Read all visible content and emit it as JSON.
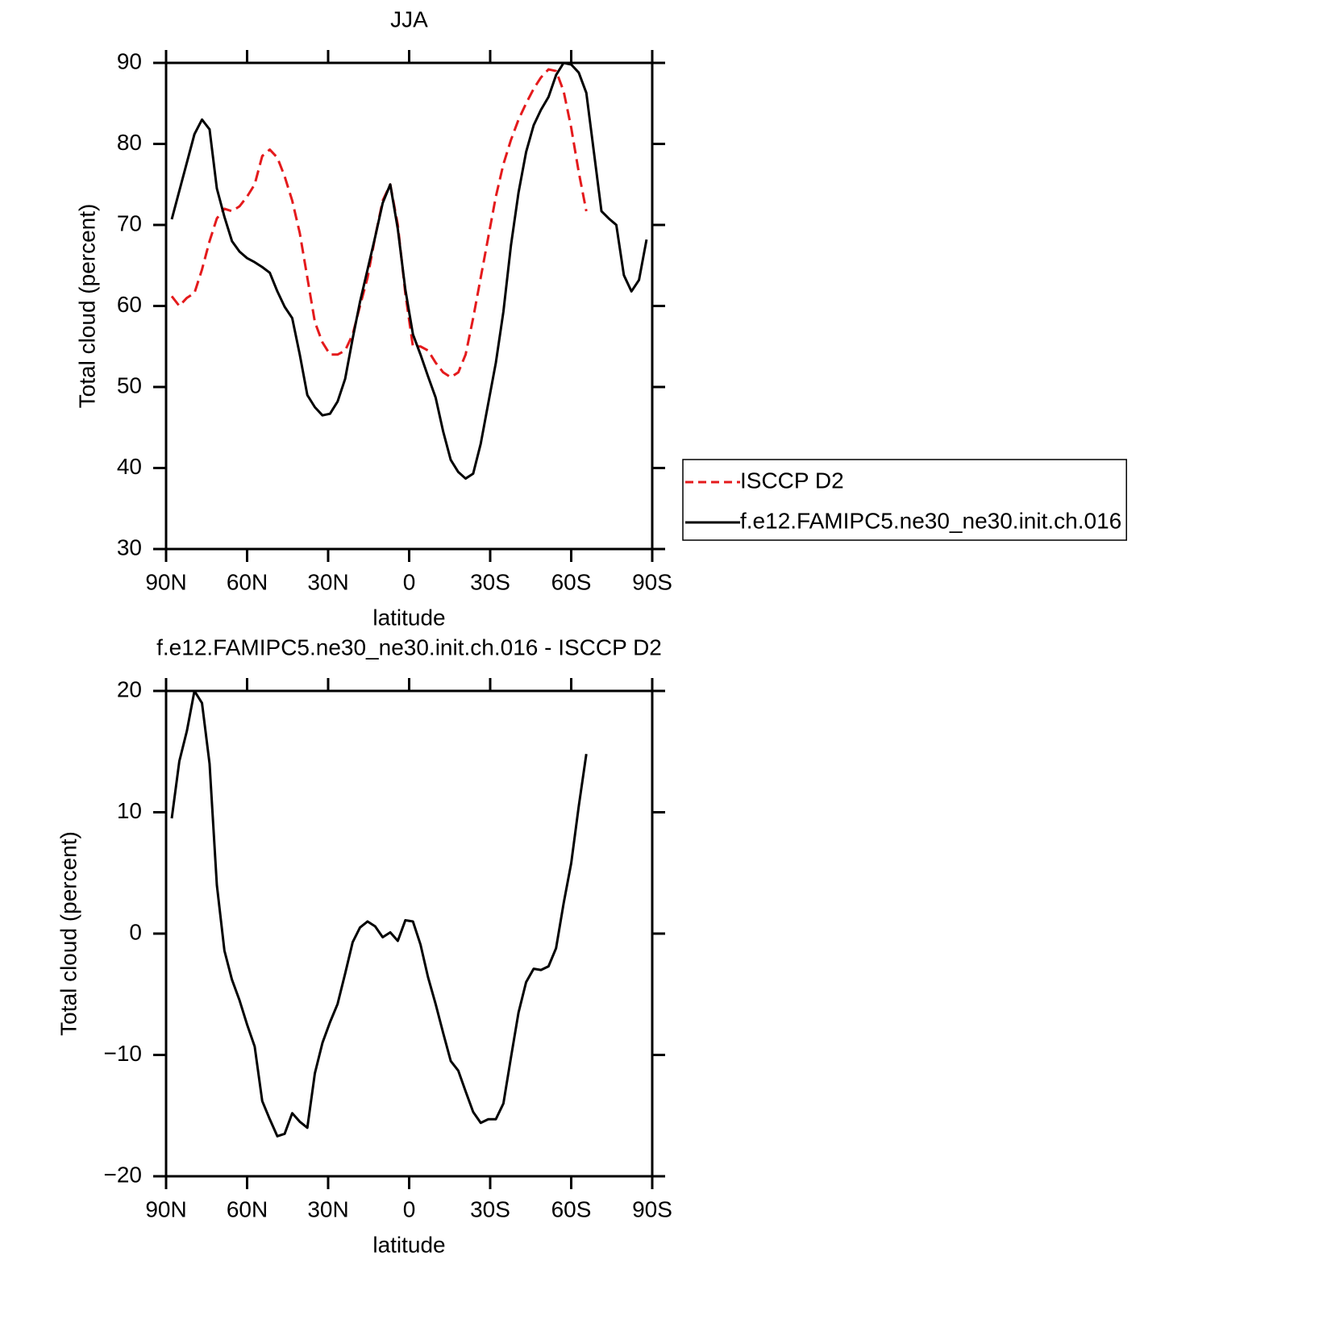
{
  "chart_data": [
    {
      "type": "line",
      "title": "JJA",
      "xlabel": "latitude",
      "ylabel": "Total cloud (percent)",
      "x": [
        87.9,
        85.1,
        82.3,
        79.5,
        76.7,
        73.9,
        71.2,
        68.4,
        65.6,
        62.8,
        60.0,
        57.2,
        54.4,
        51.6,
        48.8,
        46.1,
        43.3,
        40.5,
        37.7,
        34.9,
        32.1,
        29.3,
        26.5,
        23.7,
        20.9,
        18.2,
        15.4,
        12.6,
        9.8,
        7.0,
        4.2,
        1.4,
        -1.4,
        -4.2,
        -7.0,
        -9.8,
        -12.6,
        -15.4,
        -18.2,
        -20.9,
        -23.7,
        -26.5,
        -29.3,
        -32.1,
        -34.9,
        -37.7,
        -40.5,
        -43.3,
        -46.1,
        -48.8,
        -51.6,
        -54.4,
        -57.2,
        -60.0,
        -62.8,
        -65.6,
        -68.4,
        -71.2,
        -73.9,
        -76.7,
        -79.5,
        -82.3,
        -85.1,
        -87.9
      ],
      "xlim": [
        90,
        -90
      ],
      "xticks": [
        {
          "value": 90,
          "label": "90N"
        },
        {
          "value": 60,
          "label": "60N"
        },
        {
          "value": 30,
          "label": "30N"
        },
        0,
        {
          "value": -30,
          "label": "30S"
        },
        {
          "value": -60,
          "label": "60S"
        },
        {
          "value": -90,
          "label": "90S"
        }
      ],
      "ylim": [
        30,
        90
      ],
      "yticks": [
        30,
        40,
        50,
        60,
        70,
        80,
        90
      ],
      "legend": "right",
      "series": [
        {
          "name": "ISCCP D2",
          "color": "#e41a1c",
          "style": "dashed",
          "values": [
            61.2,
            60.0,
            61.0,
            61.6,
            64.5,
            68.0,
            70.8,
            72.0,
            71.7,
            72.3,
            73.5,
            75.0,
            78.5,
            79.3,
            78.3,
            76.0,
            73.0,
            69.0,
            63.5,
            58.0,
            55.5,
            54.0,
            54.0,
            54.5,
            56.5,
            60.0,
            63.5,
            68.5,
            73.0,
            75.0,
            70.0,
            61.5,
            55.0,
            55.0,
            54.5,
            53.0,
            51.8,
            51.2,
            51.8,
            54.0,
            58.5,
            63.5,
            68.5,
            73.5,
            77.5,
            80.5,
            83.0,
            85.0,
            86.8,
            88.2,
            89.2,
            89.0,
            86.5,
            82.0,
            76.5,
            71.7,
            null,
            null,
            null,
            null,
            null,
            null,
            null,
            null
          ]
        },
        {
          "name": "f.e12.FAMIPC5.ne30_ne30.init.ch.016",
          "color": "#000000",
          "style": "solid",
          "values": [
            70.7,
            74.2,
            77.7,
            81.2,
            83.0,
            81.8,
            74.5,
            71.0,
            68.0,
            66.7,
            65.9,
            65.4,
            64.8,
            64.1,
            61.8,
            59.9,
            58.5,
            54.0,
            49.0,
            47.5,
            46.5,
            46.7,
            48.2,
            51.0,
            56.0,
            60.5,
            64.5,
            68.5,
            72.7,
            75.0,
            69.5,
            62.0,
            56.5,
            54.0,
            51.3,
            48.7,
            44.5,
            41.0,
            39.5,
            38.7,
            39.3,
            43.0,
            48.0,
            53.0,
            59.3,
            67.5,
            74.0,
            79.0,
            82.3,
            84.2,
            85.8,
            88.5,
            90.0,
            89.8,
            88.8,
            86.3,
            79.0,
            71.7,
            70.8,
            70.0,
            63.8,
            61.8,
            63.2,
            68.2
          ]
        }
      ]
    },
    {
      "type": "line",
      "title": "f.e12.FAMIPC5.ne30_ne30.init.ch.016 - ISCCP D2",
      "xlabel": "latitude",
      "ylabel": "Total cloud (percent)",
      "x": [
        87.9,
        85.1,
        82.3,
        79.5,
        76.7,
        73.9,
        71.2,
        68.4,
        65.6,
        62.8,
        60.0,
        57.2,
        54.4,
        51.6,
        48.8,
        46.1,
        43.3,
        40.5,
        37.7,
        34.9,
        32.1,
        29.3,
        26.5,
        23.7,
        20.9,
        18.2,
        15.4,
        12.6,
        9.8,
        7.0,
        4.2,
        1.4,
        -1.4,
        -4.2,
        -7.0,
        -9.8,
        -12.6,
        -15.4,
        -18.2,
        -20.9,
        -23.7,
        -26.5,
        -29.3,
        -32.1,
        -34.9,
        -37.7,
        -40.5,
        -43.3,
        -46.1,
        -48.8,
        -51.6,
        -54.4,
        -57.2,
        -60.0,
        -62.8,
        -65.6,
        -68.4,
        -71.2,
        -73.9,
        -76.7,
        -79.5,
        -82.3,
        -85.1,
        -87.9
      ],
      "xlim": [
        90,
        -90
      ],
      "xticks": [
        {
          "value": 90,
          "label": "90N"
        },
        {
          "value": 60,
          "label": "60N"
        },
        {
          "value": 30,
          "label": "30N"
        },
        0,
        {
          "value": -30,
          "label": "30S"
        },
        {
          "value": -60,
          "label": "60S"
        },
        {
          "value": -90,
          "label": "90S"
        }
      ],
      "ylim": [
        -20,
        20
      ],
      "yticks": [
        {
          "value": -20,
          "label": "−20"
        },
        {
          "value": -10,
          "label": "−10"
        },
        0,
        10,
        20
      ],
      "color": "#000000",
      "values": [
        9.5,
        14.2,
        16.7,
        20.0,
        19.0,
        14.0,
        4.0,
        -1.4,
        -3.8,
        -5.5,
        -7.5,
        -9.3,
        -13.8,
        -15.3,
        -16.7,
        -16.5,
        -14.8,
        -15.5,
        -16.0,
        -11.5,
        -9.0,
        -7.3,
        -5.8,
        -3.3,
        -0.7,
        0.5,
        1.0,
        0.6,
        -0.3,
        0.1,
        -0.6,
        1.1,
        1.0,
        -0.9,
        -3.6,
        -5.8,
        -8.2,
        -10.5,
        -11.3,
        -13.0,
        -14.7,
        -15.6,
        -15.3,
        -15.3,
        -14.0,
        -10.2,
        -6.5,
        -4.0,
        -2.9,
        -3.0,
        -2.7,
        -1.2,
        2.5,
        5.8,
        10.5,
        14.8,
        null,
        null,
        null,
        null,
        null,
        null,
        null,
        null
      ]
    }
  ]
}
